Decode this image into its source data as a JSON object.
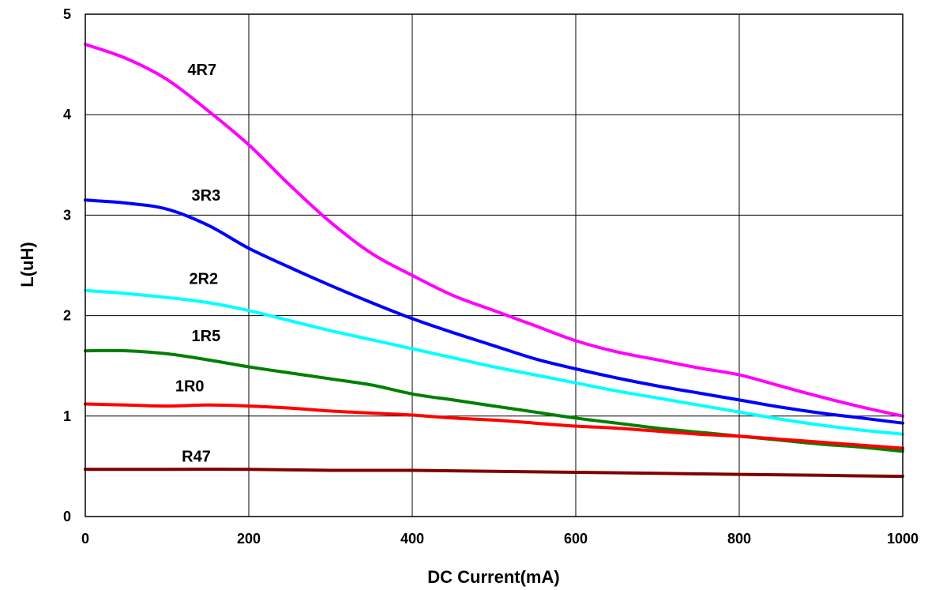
{
  "chart_data": {
    "type": "line",
    "xlabel": "DC Current(mA)",
    "ylabel": "L(uH)",
    "xlim": [
      0,
      1000
    ],
    "ylim": [
      0,
      5
    ],
    "x_ticks": [
      "0",
      "200",
      "400",
      "600",
      "800",
      "1000"
    ],
    "y_ticks": [
      "0",
      "1",
      "2",
      "3",
      "4",
      "5"
    ],
    "grid": true,
    "legend": "inline labels",
    "series": [
      {
        "name": "4R7",
        "color": "#ff00ff",
        "x": [
          0,
          50,
          100,
          150,
          200,
          250,
          300,
          350,
          400,
          450,
          500,
          550,
          600,
          650,
          700,
          750,
          800,
          850,
          900,
          950,
          1000
        ],
        "y": [
          4.7,
          4.56,
          4.35,
          4.04,
          3.7,
          3.3,
          2.93,
          2.62,
          2.4,
          2.2,
          2.05,
          1.9,
          1.75,
          1.64,
          1.56,
          1.48,
          1.41,
          1.3,
          1.19,
          1.09,
          1.0
        ]
      },
      {
        "name": "3R3",
        "color": "#0000ff",
        "x": [
          0,
          50,
          100,
          150,
          200,
          250,
          300,
          350,
          400,
          450,
          500,
          550,
          600,
          650,
          700,
          750,
          800,
          850,
          900,
          950,
          1000
        ],
        "y": [
          3.15,
          3.12,
          3.06,
          2.9,
          2.67,
          2.48,
          2.3,
          2.13,
          1.97,
          1.83,
          1.7,
          1.57,
          1.47,
          1.38,
          1.3,
          1.23,
          1.16,
          1.09,
          1.03,
          0.98,
          0.93
        ]
      },
      {
        "name": "2R2",
        "color": "#00ffff",
        "x": [
          0,
          50,
          100,
          150,
          200,
          250,
          300,
          350,
          400,
          450,
          500,
          550,
          600,
          650,
          700,
          750,
          800,
          850,
          900,
          950,
          1000
        ],
        "y": [
          2.25,
          2.22,
          2.18,
          2.13,
          2.05,
          1.95,
          1.85,
          1.76,
          1.67,
          1.58,
          1.49,
          1.41,
          1.33,
          1.25,
          1.18,
          1.11,
          1.04,
          0.97,
          0.91,
          0.86,
          0.82
        ]
      },
      {
        "name": "1R5",
        "color": "#008000",
        "x": [
          0,
          50,
          100,
          150,
          200,
          250,
          300,
          350,
          400,
          450,
          500,
          550,
          600,
          650,
          700,
          750,
          800,
          850,
          900,
          950,
          1000
        ],
        "y": [
          1.65,
          1.65,
          1.62,
          1.56,
          1.49,
          1.43,
          1.37,
          1.31,
          1.22,
          1.16,
          1.1,
          1.04,
          0.98,
          0.93,
          0.88,
          0.84,
          0.8,
          0.76,
          0.72,
          0.69,
          0.65
        ]
      },
      {
        "name": "1R0",
        "color": "#ff0000",
        "x": [
          0,
          50,
          100,
          150,
          200,
          250,
          300,
          350,
          400,
          450,
          500,
          550,
          600,
          650,
          700,
          750,
          800,
          850,
          900,
          950,
          1000
        ],
        "y": [
          1.12,
          1.11,
          1.1,
          1.11,
          1.1,
          1.08,
          1.05,
          1.03,
          1.01,
          0.98,
          0.96,
          0.93,
          0.9,
          0.88,
          0.85,
          0.82,
          0.8,
          0.77,
          0.74,
          0.71,
          0.68
        ]
      },
      {
        "name": "R47",
        "color": "#800000",
        "x": [
          0,
          100,
          200,
          300,
          400,
          500,
          600,
          700,
          800,
          900,
          1000
        ],
        "y": [
          0.47,
          0.47,
          0.47,
          0.46,
          0.46,
          0.45,
          0.44,
          0.43,
          0.42,
          0.41,
          0.4
        ]
      }
    ],
    "series_label_positions": [
      {
        "name": "4R7",
        "x": 125,
        "y": 4.45
      },
      {
        "name": "3R3",
        "x": 130,
        "y": 3.2
      },
      {
        "name": "2R2",
        "x": 127,
        "y": 2.37
      },
      {
        "name": "1R5",
        "x": 130,
        "y": 1.8
      },
      {
        "name": "1R0",
        "x": 110,
        "y": 1.3
      },
      {
        "name": "R47",
        "x": 118,
        "y": 0.6
      }
    ]
  }
}
